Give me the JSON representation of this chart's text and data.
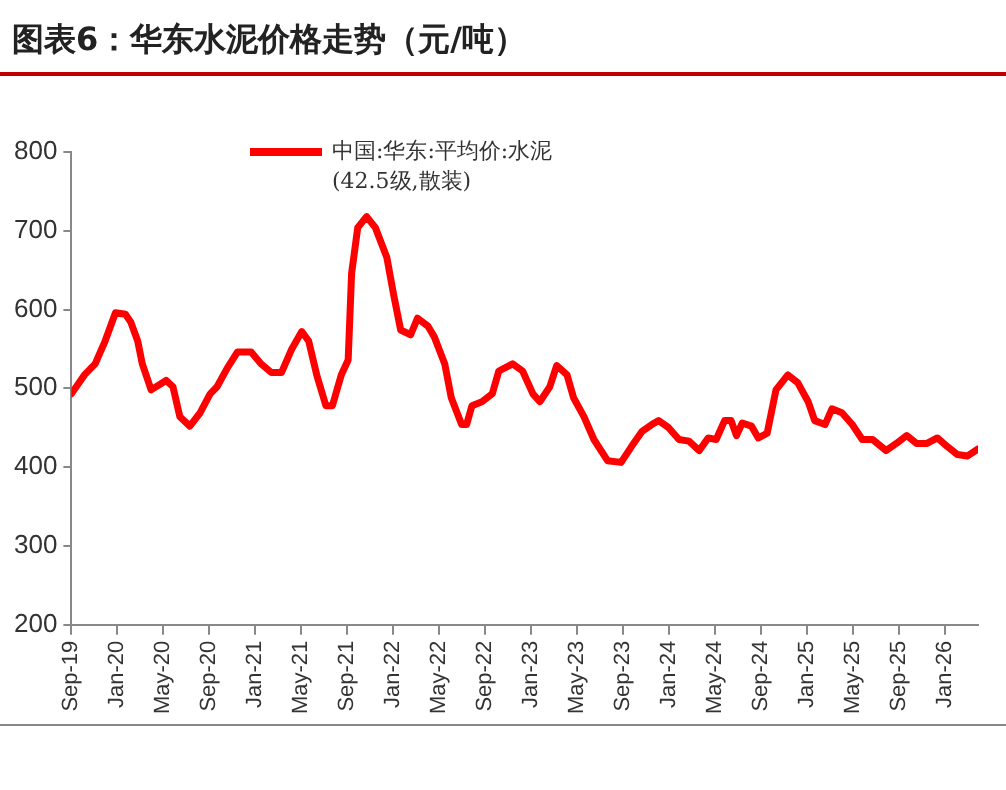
{
  "chart_data": {
    "type": "line",
    "title": "图表6：华东水泥价格走势（元/吨）",
    "x": [
      "2019-09-01",
      "2019-10-05",
      "2019-11-03",
      "2019-11-29",
      "2019-12-26",
      "2020-01-22",
      "2020-02-06",
      "2020-02-24",
      "2020-03-06",
      "2020-03-29",
      "2020-05-08",
      "2020-05-26",
      "2020-06-14",
      "2020-07-10",
      "2020-08-07",
      "2020-09-03",
      "2020-09-21",
      "2020-10-18",
      "2020-11-14",
      "2020-12-20",
      "2021-01-16",
      "2021-02-13",
      "2021-03-09",
      "2021-04-06",
      "2021-05-02",
      "2021-05-20",
      "2021-06-11",
      "2021-07-05",
      "2021-07-22",
      "2021-08-15",
      "2021-09-03",
      "2021-09-12",
      "2021-09-28",
      "2021-10-21",
      "2021-11-14",
      "2021-12-14",
      "2022-01-02",
      "2022-01-20",
      "2022-02-16",
      "2022-03-04",
      "2022-04-01",
      "2022-04-18",
      "2022-05-15",
      "2022-06-02",
      "2022-06-29",
      "2022-07-12",
      "2022-07-26",
      "2022-08-22",
      "2022-09-19",
      "2022-10-06",
      "2022-11-12",
      "2022-12-08",
      "2023-01-05",
      "2023-01-23",
      "2023-02-19",
      "2023-03-07",
      "2023-04-04",
      "2023-04-21",
      "2023-05-18",
      "2023-06-14",
      "2023-07-20",
      "2023-08-25",
      "2023-09-22",
      "2023-10-19",
      "2023-11-15",
      "2023-12-03",
      "2023-12-29",
      "2024-01-26",
      "2024-02-22",
      "2024-03-19",
      "2024-04-12",
      "2024-05-03",
      "2024-05-25",
      "2024-06-12",
      "2024-06-26",
      "2024-07-11",
      "2024-08-05",
      "2024-08-23",
      "2024-09-16",
      "2024-10-09",
      "2024-11-10",
      "2024-12-06",
      "2025-01-03",
      "2025-01-20",
      "2025-02-17",
      "2025-03-05",
      "2025-04-01",
      "2025-04-28",
      "2025-05-24",
      "2025-06-21",
      "2025-07-26",
      "2025-08-23",
      "2025-09-20",
      "2025-10-16",
      "2025-11-13",
      "2025-12-10",
      "2026-01-06",
      "2026-02-02",
      "2026-02-28",
      "2026-03-26"
    ],
    "series": [
      {
        "name": "中国:华东:平均价:水泥(42.5级,散装)",
        "color": "#ff0000",
        "values": [
          493,
          517,
          531,
          560,
          596,
          594,
          584,
          560,
          531,
          498,
          510,
          502,
          464,
          452,
          469,
          493,
          502,
          526,
          546,
          546,
          531,
          520,
          520,
          550,
          572,
          560,
          517,
          478,
          478,
          517,
          536,
          646,
          704,
          718,
          704,
          666,
          618,
          574,
          568,
          589,
          579,
          565,
          531,
          488,
          454,
          454,
          478,
          483,
          493,
          522,
          531,
          522,
          493,
          483,
          502,
          529,
          517,
          488,
          464,
          435,
          408,
          406,
          426,
          445,
          454,
          459,
          450,
          435,
          433,
          421,
          437,
          435,
          459,
          459,
          440,
          456,
          452,
          437,
          443,
          498,
          517,
          507,
          483,
          459,
          454,
          474,
          469,
          454,
          435,
          435,
          421,
          430,
          440,
          430,
          430,
          437,
          426,
          416,
          414,
          423
        ]
      }
    ],
    "xlim": [
      "2019-09-01",
      "2026-03-26"
    ],
    "xticks": [
      {
        "value": "2019-09",
        "label": "Sep-19"
      },
      {
        "value": "2020-01",
        "label": "Jan-20"
      },
      {
        "value": "2020-05",
        "label": "May-20"
      },
      {
        "value": "2020-09",
        "label": "Sep-20"
      },
      {
        "value": "2021-01",
        "label": "Jan-21"
      },
      {
        "value": "2021-05",
        "label": "May-21"
      },
      {
        "value": "2021-09",
        "label": "Sep-21"
      },
      {
        "value": "2022-01",
        "label": "Jan-22"
      },
      {
        "value": "2022-05",
        "label": "May-22"
      },
      {
        "value": "2022-09",
        "label": "Sep-22"
      },
      {
        "value": "2023-01",
        "label": "Jan-23"
      },
      {
        "value": "2023-05",
        "label": "May-23"
      },
      {
        "value": "2023-09",
        "label": "Sep-23"
      },
      {
        "value": "2024-01",
        "label": "Jan-24"
      },
      {
        "value": "2024-05",
        "label": "May-24"
      },
      {
        "value": "2024-09",
        "label": "Sep-24"
      },
      {
        "value": "2025-01",
        "label": "Jan-25"
      },
      {
        "value": "2025-05",
        "label": "May-25"
      },
      {
        "value": "2025-09",
        "label": "Sep-25"
      },
      {
        "value": "2026-01",
        "label": "Jan-26"
      }
    ],
    "ylim": [
      200,
      800
    ],
    "yticks": [
      200,
      300,
      400,
      500,
      600,
      700,
      800
    ],
    "grid": false,
    "legend": "top left",
    "marker": "none",
    "line_style": "solid"
  }
}
